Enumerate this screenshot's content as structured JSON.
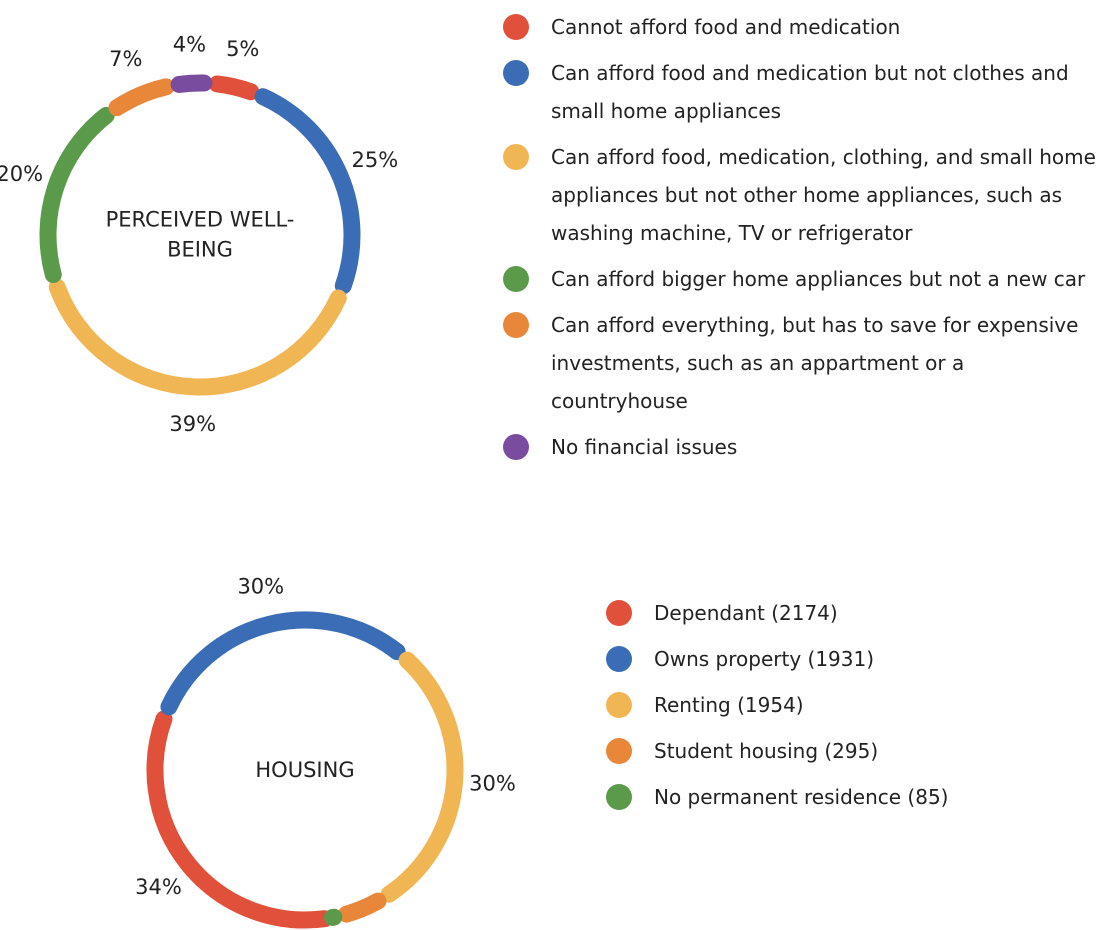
{
  "chart_data": [
    {
      "type": "donut",
      "center_label": "PERCEIVED WELL-BEING",
      "categories": [
        "Cannot afford food and medication",
        "Can afford food and medication but not clothes and small home appliances",
        "Can afford food, medication, clothing, and small home appliances but not other home appliances, such as washing machine, TV or refrigerator",
        "Can afford bigger home appliances but not a new car",
        "Can afford everything, but has to save for expensive investments, such as an appartment or a countryhouse",
        "No financial issues"
      ],
      "values": [
        5,
        25,
        39,
        20,
        7,
        4
      ],
      "value_labels": [
        "5%",
        "25%",
        "39%",
        "20%",
        "7%",
        "4%"
      ],
      "colors": [
        "#e0503a",
        "#3a6db5",
        "#f0b654",
        "#5a9a4a",
        "#e8863a",
        "#7a4ca0"
      ]
    },
    {
      "type": "donut",
      "center_label": "HOUSING",
      "categories": [
        "Dependant (2174)",
        "Owns property (1931)",
        "Renting (1954)",
        "Student housing (295)",
        "No permanent residence (85)"
      ],
      "values": [
        34,
        30,
        30,
        5,
        1
      ],
      "value_labels": [
        "34%",
        "30%",
        "30%",
        "5%",
        "1%"
      ],
      "colors": [
        "#e0503a",
        "#3a6db5",
        "#f0b654",
        "#e8863a",
        "#5a9a4a"
      ]
    }
  ]
}
